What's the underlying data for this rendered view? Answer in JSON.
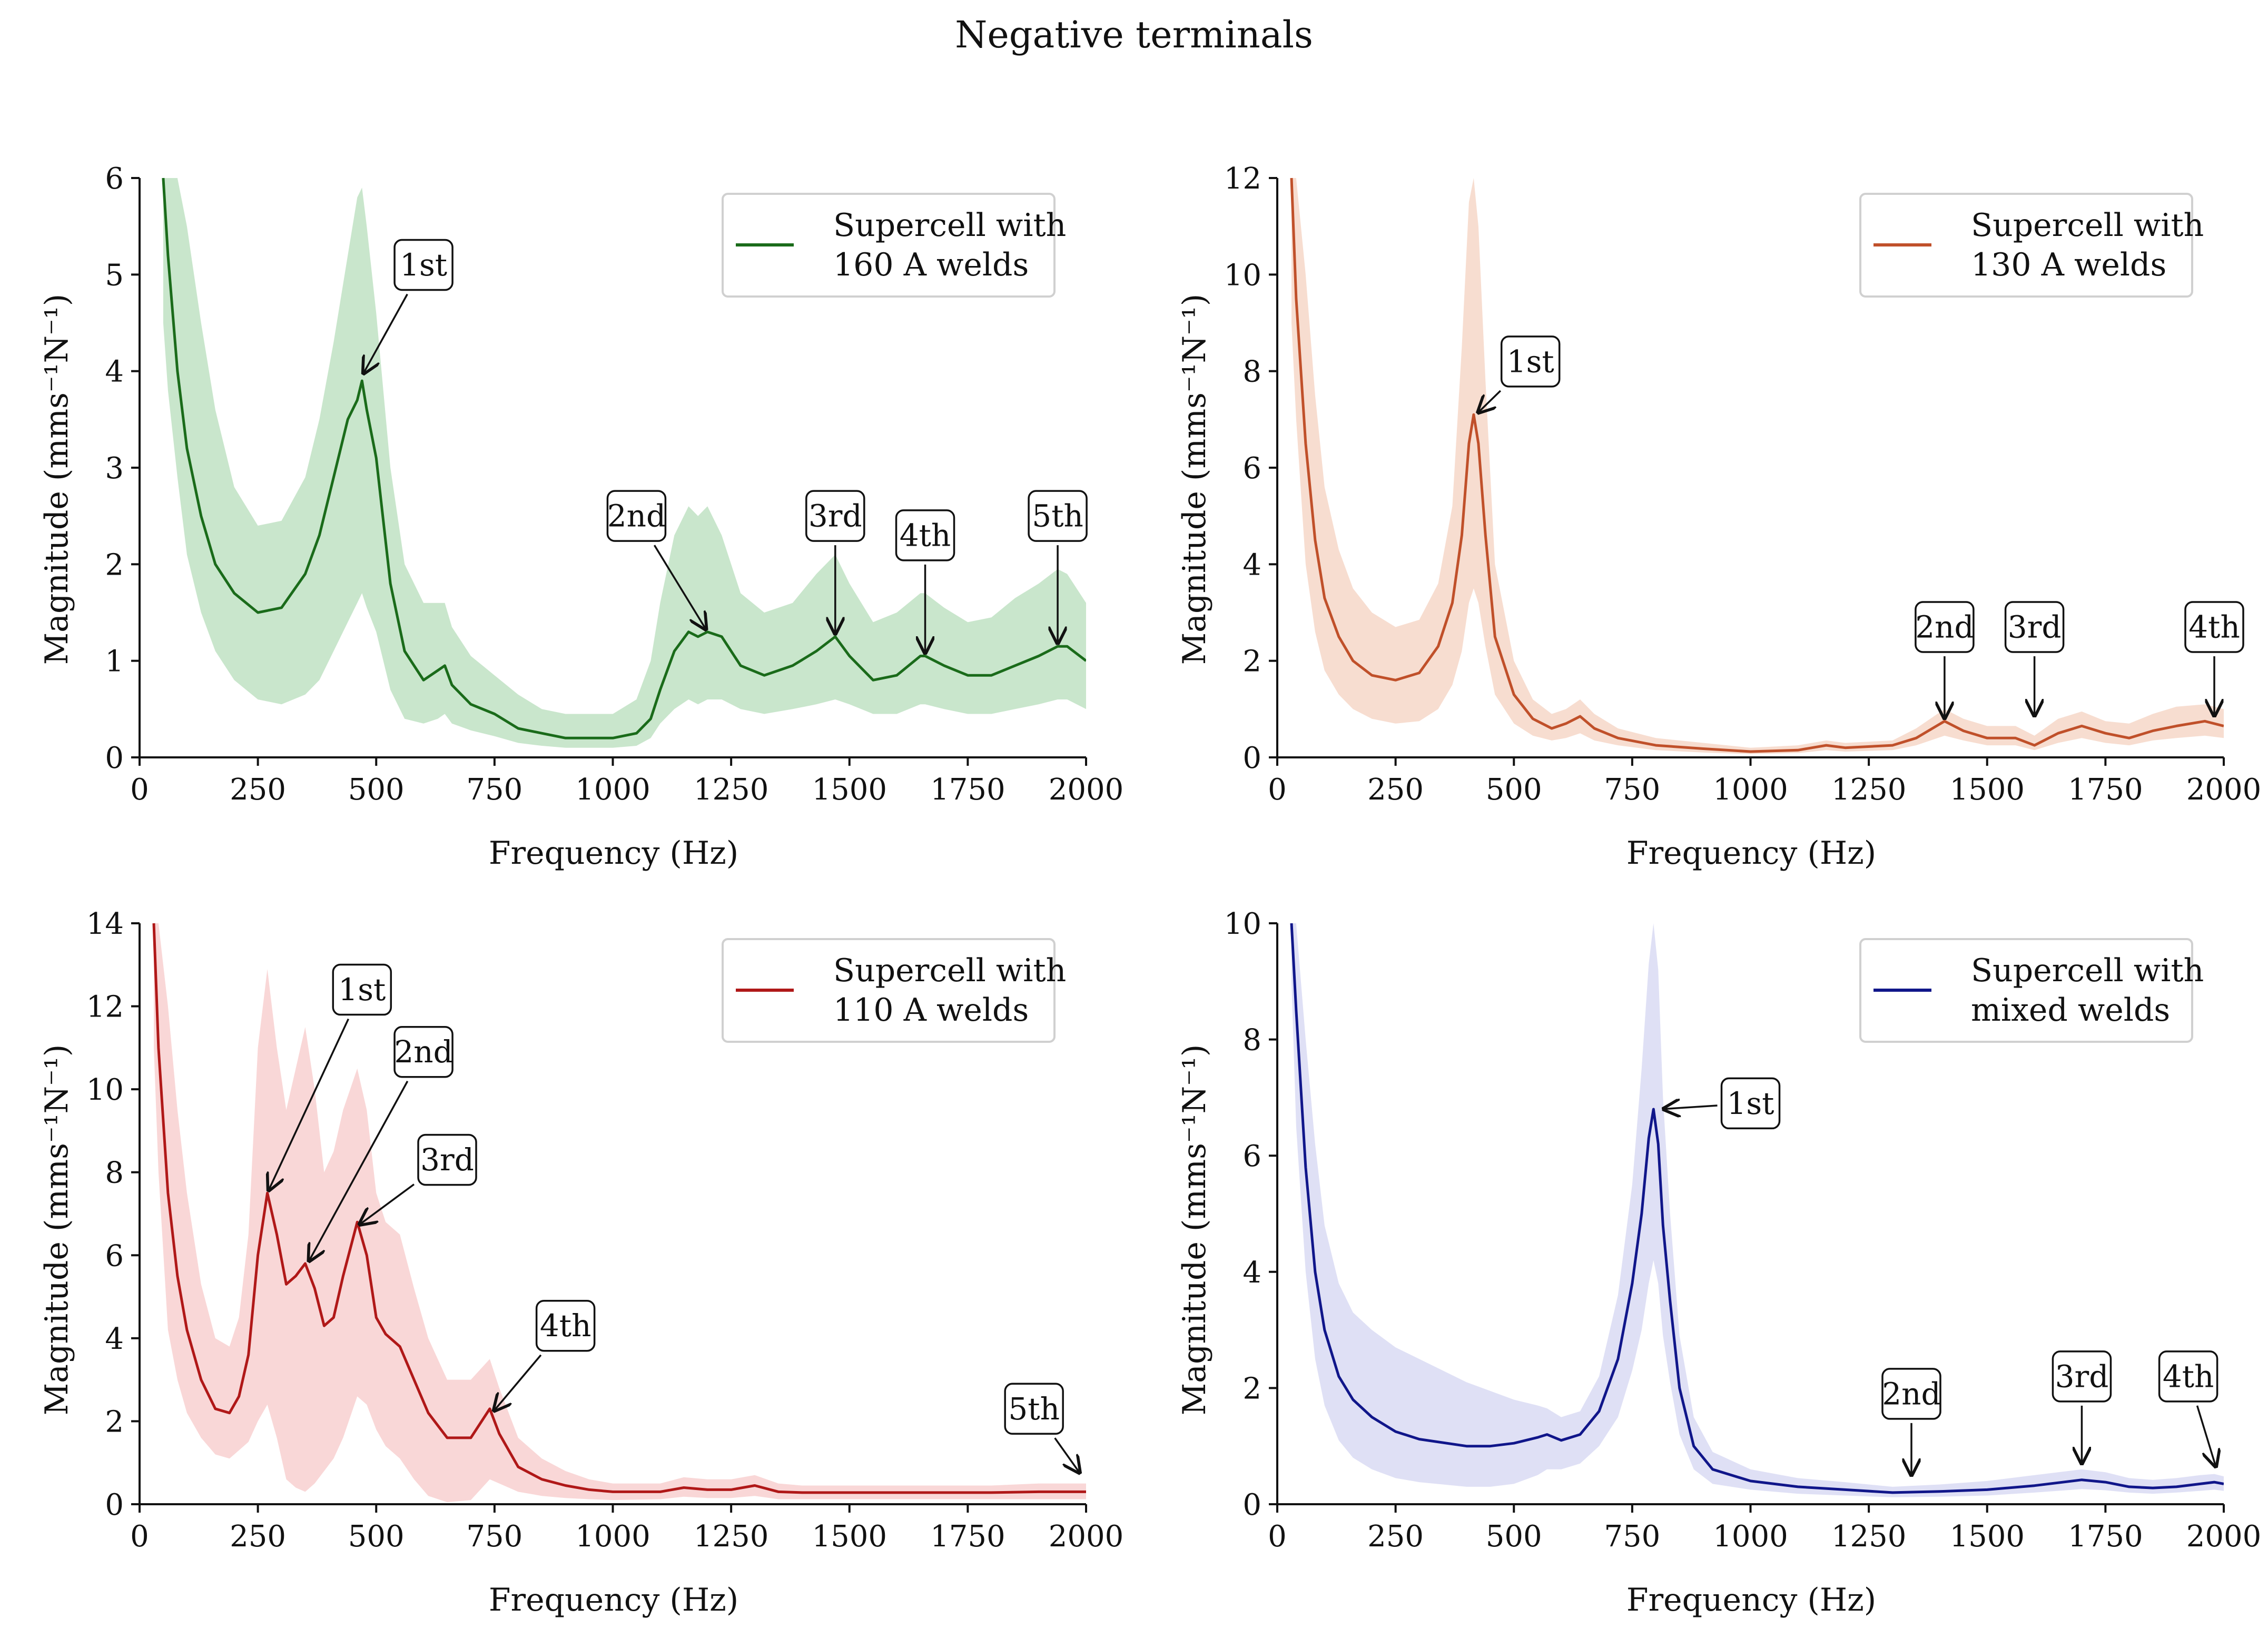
{
  "figure": {
    "title": "Negative terminals"
  },
  "chart_data": [
    {
      "id": "p160",
      "type": "line",
      "title": "",
      "xlabel": "Frequency (Hz)",
      "ylabel": "Magnitude (mms⁻¹N⁻¹)",
      "xlim": [
        0,
        2000
      ],
      "ylim": [
        0,
        6
      ],
      "xticks": [
        "0",
        "250",
        "500",
        "750",
        "1000",
        "1250",
        "1500",
        "1750",
        "2000"
      ],
      "yticks": [
        "0",
        "1",
        "2",
        "3",
        "4",
        "5",
        "6"
      ],
      "color": "#1a6b1a",
      "band_color": "#c9e6cc",
      "legend": {
        "line1": "Supercell with",
        "line2": "160 A welds",
        "position": "upper-right"
      },
      "series": {
        "name": "Supercell with 160 A welds",
        "x": [
          50,
          60,
          80,
          100,
          130,
          160,
          200,
          250,
          300,
          350,
          380,
          410,
          440,
          460,
          470,
          480,
          500,
          530,
          560,
          600,
          630,
          645,
          660,
          700,
          750,
          800,
          850,
          900,
          950,
          1000,
          1050,
          1080,
          1100,
          1130,
          1160,
          1180,
          1200,
          1230,
          1270,
          1320,
          1380,
          1430,
          1470,
          1500,
          1550,
          1600,
          1650,
          1660,
          1700,
          1750,
          1800,
          1850,
          1900,
          1940,
          1960,
          2000
        ],
        "y": [
          6.0,
          5.2,
          4.0,
          3.2,
          2.5,
          2.0,
          1.7,
          1.5,
          1.55,
          1.9,
          2.3,
          2.9,
          3.5,
          3.7,
          3.9,
          3.6,
          3.1,
          1.8,
          1.1,
          0.8,
          0.9,
          0.95,
          0.75,
          0.55,
          0.45,
          0.3,
          0.25,
          0.2,
          0.2,
          0.2,
          0.25,
          0.4,
          0.7,
          1.1,
          1.3,
          1.25,
          1.3,
          1.25,
          0.95,
          0.85,
          0.95,
          1.1,
          1.25,
          1.05,
          0.8,
          0.85,
          1.05,
          1.05,
          0.95,
          0.85,
          0.85,
          0.95,
          1.05,
          1.15,
          1.15,
          1.0
        ],
        "upper": [
          6.5,
          6.5,
          6.5,
          5.5,
          4.5,
          3.6,
          2.8,
          2.4,
          2.45,
          2.9,
          3.5,
          4.3,
          5.2,
          5.8,
          5.9,
          5.5,
          4.6,
          3.0,
          2.0,
          1.6,
          1.6,
          1.6,
          1.35,
          1.05,
          0.85,
          0.65,
          0.5,
          0.45,
          0.45,
          0.45,
          0.6,
          1.0,
          1.6,
          2.3,
          2.6,
          2.5,
          2.6,
          2.3,
          1.7,
          1.5,
          1.6,
          1.9,
          2.1,
          1.8,
          1.4,
          1.5,
          1.7,
          1.7,
          1.55,
          1.4,
          1.45,
          1.65,
          1.8,
          1.95,
          1.9,
          1.6
        ],
        "lower": [
          4.5,
          3.8,
          2.9,
          2.1,
          1.5,
          1.1,
          0.8,
          0.6,
          0.55,
          0.65,
          0.8,
          1.1,
          1.4,
          1.6,
          1.7,
          1.55,
          1.3,
          0.7,
          0.4,
          0.35,
          0.4,
          0.45,
          0.35,
          0.28,
          0.22,
          0.15,
          0.12,
          0.1,
          0.1,
          0.1,
          0.12,
          0.2,
          0.35,
          0.5,
          0.6,
          0.55,
          0.6,
          0.6,
          0.5,
          0.45,
          0.5,
          0.55,
          0.6,
          0.55,
          0.45,
          0.45,
          0.55,
          0.55,
          0.5,
          0.45,
          0.45,
          0.5,
          0.55,
          0.6,
          0.6,
          0.5
        ]
      },
      "annotations": [
        {
          "label": "1st",
          "x": 470,
          "y": 3.95,
          "tx": 600,
          "ty": 5.1
        },
        {
          "label": "2nd",
          "x": 1200,
          "y": 1.3,
          "tx": 1050,
          "ty": 2.5
        },
        {
          "label": "3rd",
          "x": 1470,
          "y": 1.25,
          "tx": 1470,
          "ty": 2.5
        },
        {
          "label": "4th",
          "x": 1660,
          "y": 1.05,
          "tx": 1660,
          "ty": 2.3
        },
        {
          "label": "5th",
          "x": 1940,
          "y": 1.15,
          "tx": 1940,
          "ty": 2.5
        }
      ]
    },
    {
      "id": "p130",
      "type": "line",
      "title": "",
      "xlabel": "Frequency (Hz)",
      "ylabel": "Magnitude (mms⁻¹N⁻¹)",
      "xlim": [
        0,
        2000
      ],
      "ylim": [
        0,
        12
      ],
      "xticks": [
        "0",
        "250",
        "500",
        "750",
        "1000",
        "1250",
        "1500",
        "1750",
        "2000"
      ],
      "yticks": [
        "0",
        "2",
        "4",
        "6",
        "8",
        "10",
        "12"
      ],
      "color": "#c0502a",
      "band_color": "#f7ddd0",
      "legend": {
        "line1": "Supercell with",
        "line2": "130 A welds",
        "position": "upper-right"
      },
      "series": {
        "name": "Supercell with 130 A welds",
        "x": [
          30,
          40,
          60,
          80,
          100,
          130,
          160,
          200,
          250,
          300,
          340,
          370,
          390,
          405,
          415,
          425,
          440,
          460,
          500,
          540,
          580,
          610,
          640,
          670,
          720,
          800,
          900,
          1000,
          1100,
          1160,
          1200,
          1300,
          1350,
          1410,
          1450,
          1500,
          1560,
          1600,
          1650,
          1700,
          1750,
          1800,
          1850,
          1900,
          1960,
          2000
        ],
        "y": [
          12.0,
          9.5,
          6.5,
          4.5,
          3.3,
          2.5,
          2.0,
          1.7,
          1.6,
          1.75,
          2.3,
          3.2,
          4.6,
          6.5,
          7.1,
          6.5,
          4.6,
          2.5,
          1.3,
          0.8,
          0.6,
          0.7,
          0.85,
          0.6,
          0.4,
          0.25,
          0.18,
          0.12,
          0.15,
          0.25,
          0.2,
          0.25,
          0.4,
          0.75,
          0.55,
          0.4,
          0.4,
          0.25,
          0.5,
          0.65,
          0.5,
          0.4,
          0.55,
          0.65,
          0.75,
          0.65
        ],
        "upper": [
          13.0,
          13.0,
          10.0,
          7.5,
          5.6,
          4.3,
          3.5,
          3.0,
          2.7,
          2.85,
          3.6,
          5.2,
          8.5,
          11.5,
          12.0,
          11.0,
          7.8,
          4.0,
          2.0,
          1.2,
          0.9,
          1.0,
          1.2,
          0.9,
          0.6,
          0.4,
          0.3,
          0.2,
          0.25,
          0.35,
          0.3,
          0.35,
          0.6,
          1.0,
          0.8,
          0.65,
          0.65,
          0.45,
          0.8,
          0.95,
          0.75,
          0.7,
          0.9,
          1.05,
          1.1,
          1.0
        ],
        "lower": [
          9.0,
          7.0,
          4.0,
          2.6,
          1.8,
          1.3,
          1.0,
          0.8,
          0.7,
          0.75,
          1.0,
          1.5,
          2.2,
          3.2,
          3.5,
          3.2,
          2.3,
          1.3,
          0.7,
          0.45,
          0.35,
          0.4,
          0.5,
          0.35,
          0.25,
          0.15,
          0.1,
          0.07,
          0.09,
          0.15,
          0.12,
          0.15,
          0.25,
          0.45,
          0.35,
          0.25,
          0.25,
          0.15,
          0.3,
          0.4,
          0.3,
          0.25,
          0.35,
          0.4,
          0.45,
          0.4
        ]
      },
      "annotations": [
        {
          "label": "1st",
          "x": 420,
          "y": 7.1,
          "tx": 535,
          "ty": 8.2
        },
        {
          "label": "2nd",
          "x": 1410,
          "y": 0.75,
          "tx": 1410,
          "ty": 2.7
        },
        {
          "label": "3rd",
          "x": 1600,
          "y": 0.8,
          "tx": 1600,
          "ty": 2.7
        },
        {
          "label": "4th",
          "x": 1980,
          "y": 0.8,
          "tx": 1980,
          "ty": 2.7
        }
      ]
    },
    {
      "id": "p110",
      "type": "line",
      "title": "",
      "xlabel": "Frequency (Hz)",
      "ylabel": "Magnitude (mms⁻¹N⁻¹)",
      "xlim": [
        0,
        2000
      ],
      "ylim": [
        0,
        14
      ],
      "xticks": [
        "0",
        "250",
        "500",
        "750",
        "1000",
        "1250",
        "1500",
        "1750",
        "2000"
      ],
      "yticks": [
        "0",
        "2",
        "4",
        "6",
        "8",
        "10",
        "12",
        "14"
      ],
      "color": "#b01818",
      "band_color": "#f9d7d7",
      "legend": {
        "line1": "Supercell with",
        "line2": "110 A welds",
        "position": "upper-right"
      },
      "series": {
        "name": "Supercell with 110 A welds",
        "x": [
          30,
          40,
          60,
          80,
          100,
          130,
          160,
          190,
          210,
          230,
          250,
          270,
          290,
          310,
          330,
          350,
          370,
          390,
          410,
          430,
          460,
          480,
          500,
          520,
          550,
          580,
          610,
          650,
          700,
          740,
          760,
          800,
          850,
          900,
          950,
          1000,
          1100,
          1150,
          1200,
          1250,
          1300,
          1350,
          1400,
          1500,
          1600,
          1700,
          1800,
          1900,
          2000
        ],
        "y": [
          14.0,
          11.0,
          7.5,
          5.5,
          4.2,
          3.0,
          2.3,
          2.2,
          2.6,
          3.6,
          6.0,
          7.5,
          6.5,
          5.3,
          5.5,
          5.8,
          5.2,
          4.3,
          4.5,
          5.5,
          6.8,
          6.0,
          4.5,
          4.1,
          3.8,
          3.0,
          2.2,
          1.6,
          1.6,
          2.3,
          1.7,
          0.9,
          0.6,
          0.45,
          0.35,
          0.3,
          0.3,
          0.4,
          0.35,
          0.35,
          0.45,
          0.3,
          0.28,
          0.28,
          0.28,
          0.28,
          0.28,
          0.3,
          0.3
        ],
        "upper": [
          15.0,
          15.0,
          12.0,
          9.5,
          7.5,
          5.3,
          4.0,
          3.8,
          4.5,
          6.5,
          11.0,
          12.9,
          11.0,
          9.5,
          10.5,
          11.5,
          10.0,
          8.0,
          8.5,
          9.5,
          10.5,
          9.5,
          7.5,
          6.8,
          6.5,
          5.2,
          4.0,
          3.0,
          3.0,
          3.5,
          2.8,
          1.6,
          1.1,
          0.8,
          0.6,
          0.5,
          0.5,
          0.65,
          0.6,
          0.6,
          0.7,
          0.5,
          0.45,
          0.45,
          0.45,
          0.45,
          0.45,
          0.5,
          0.5
        ],
        "lower": [
          11.0,
          8.0,
          4.2,
          3.0,
          2.2,
          1.6,
          1.2,
          1.1,
          1.3,
          1.5,
          2.0,
          2.4,
          1.6,
          0.6,
          0.4,
          0.3,
          0.5,
          0.8,
          1.1,
          1.6,
          2.6,
          2.4,
          1.8,
          1.4,
          1.1,
          0.6,
          0.2,
          0.05,
          0.1,
          0.6,
          0.5,
          0.3,
          0.2,
          0.15,
          0.12,
          0.1,
          0.12,
          0.18,
          0.15,
          0.15,
          0.2,
          0.12,
          0.12,
          0.12,
          0.12,
          0.12,
          0.12,
          0.12,
          0.12
        ]
      },
      "annotations": [
        {
          "label": "1st",
          "x": 270,
          "y": 7.5,
          "tx": 470,
          "ty": 12.4
        },
        {
          "label": "2nd",
          "x": 355,
          "y": 5.8,
          "tx": 600,
          "ty": 10.9
        },
        {
          "label": "3rd",
          "x": 460,
          "y": 6.7,
          "tx": 650,
          "ty": 8.3
        },
        {
          "label": "4th",
          "x": 745,
          "y": 2.2,
          "tx": 900,
          "ty": 4.3
        },
        {
          "label": "5th",
          "x": 1990,
          "y": 0.7,
          "tx": 1890,
          "ty": 2.3
        }
      ]
    },
    {
      "id": "pmixed",
      "type": "line",
      "title": "",
      "xlabel": "Frequency (Hz)",
      "ylabel": "Magnitude (mms⁻¹N⁻¹)",
      "xlim": [
        0,
        2000
      ],
      "ylim": [
        0,
        10
      ],
      "xticks": [
        "0",
        "250",
        "500",
        "750",
        "1000",
        "1250",
        "1500",
        "1750",
        "2000"
      ],
      "yticks": [
        "0",
        "2",
        "4",
        "6",
        "8",
        "10"
      ],
      "color": "#10168a",
      "band_color": "#dfe0f5",
      "legend": {
        "line1": "Supercell with",
        "line2": "mixed welds",
        "position": "upper-right"
      },
      "series": {
        "name": "Supercell with mixed welds",
        "x": [
          30,
          40,
          60,
          80,
          100,
          130,
          160,
          200,
          250,
          300,
          400,
          450,
          500,
          550,
          570,
          600,
          640,
          680,
          720,
          750,
          770,
          785,
          795,
          805,
          815,
          830,
          850,
          880,
          920,
          1000,
          1100,
          1200,
          1300,
          1400,
          1500,
          1600,
          1700,
          1750,
          1800,
          1850,
          1900,
          1950,
          1980,
          2000
        ],
        "y": [
          10.0,
          8.5,
          5.8,
          4.0,
          3.0,
          2.2,
          1.8,
          1.5,
          1.25,
          1.12,
          1.0,
          1.0,
          1.05,
          1.15,
          1.2,
          1.1,
          1.2,
          1.6,
          2.5,
          3.8,
          5.0,
          6.3,
          6.8,
          6.2,
          4.8,
          3.5,
          2.0,
          1.0,
          0.6,
          0.4,
          0.3,
          0.25,
          0.2,
          0.22,
          0.25,
          0.32,
          0.42,
          0.38,
          0.3,
          0.28,
          0.3,
          0.35,
          0.38,
          0.35
        ],
        "upper": [
          11.0,
          11.0,
          8.0,
          6.2,
          4.8,
          3.8,
          3.3,
          3.0,
          2.7,
          2.5,
          2.1,
          1.95,
          1.8,
          1.7,
          1.65,
          1.5,
          1.6,
          2.2,
          3.6,
          5.5,
          7.5,
          9.3,
          10.0,
          9.2,
          7.0,
          5.0,
          2.9,
          1.5,
          0.9,
          0.6,
          0.45,
          0.38,
          0.3,
          0.34,
          0.4,
          0.5,
          0.6,
          0.55,
          0.45,
          0.42,
          0.45,
          0.5,
          0.52,
          0.48
        ],
        "lower": [
          9.0,
          6.5,
          4.0,
          2.5,
          1.7,
          1.1,
          0.8,
          0.6,
          0.45,
          0.38,
          0.3,
          0.3,
          0.35,
          0.5,
          0.6,
          0.6,
          0.7,
          1.0,
          1.5,
          2.3,
          3.0,
          3.8,
          4.2,
          3.8,
          2.9,
          2.1,
          1.2,
          0.6,
          0.35,
          0.25,
          0.18,
          0.15,
          0.12,
          0.13,
          0.15,
          0.2,
          0.26,
          0.24,
          0.2,
          0.18,
          0.2,
          0.23,
          0.25,
          0.23
        ]
      },
      "annotations": [
        {
          "label": "1st",
          "x": 810,
          "y": 6.8,
          "tx": 1000,
          "ty": 6.9
        },
        {
          "label": "2nd",
          "x": 1340,
          "y": 0.45,
          "tx": 1340,
          "ty": 1.9
        },
        {
          "label": "3rd",
          "x": 1700,
          "y": 0.65,
          "tx": 1700,
          "ty": 2.2
        },
        {
          "label": "4th",
          "x": 1985,
          "y": 0.6,
          "tx": 1925,
          "ty": 2.2
        }
      ]
    }
  ]
}
